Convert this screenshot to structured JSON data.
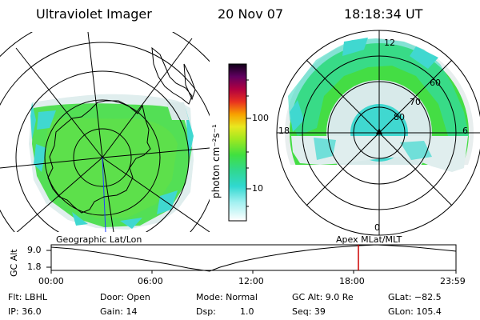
{
  "header": {
    "title": "Ultraviolet Imager",
    "date": "20 Nov 07",
    "time": "18:18:34 UT"
  },
  "colorbar": {
    "unit_label": "photon cm⁻²s⁻¹",
    "tick_labels": [
      "100",
      "10"
    ]
  },
  "polar_plot": {
    "top_label": "12",
    "left_label": "18",
    "right_label": "6",
    "bottom_label": "0",
    "ring_labels": [
      "60",
      "70",
      "80"
    ]
  },
  "altitude_panel": {
    "left_caption": "Geographic Lat/Lon",
    "right_caption": "Apex MLat/MLT",
    "axis_title": "GC Alt",
    "y_ticks": [
      "9.0",
      "1.8"
    ],
    "x_ticks": [
      "00:00",
      "06:00",
      "12:00",
      "18:00",
      "23:59"
    ],
    "marker_color": "#cc0000"
  },
  "status": {
    "filter": "Flt: LBHL",
    "door": "Door: Open",
    "mode": "Mode: Normal",
    "gc_alt": "GC Alt: 9.0 Re",
    "glat": "GLat: −82.5",
    "ip": "IP: 36.0",
    "gain": "Gain: 14",
    "dsp_label": "Dsp:",
    "dsp_value": "1.0",
    "seq": "Seq: 39",
    "glon": "GLon: 105.4"
  },
  "colors": {
    "aurora_green": "#3fe03f",
    "aurora_cyan": "#40d8d0",
    "aurora_pale": "#d8e8e8"
  }
}
